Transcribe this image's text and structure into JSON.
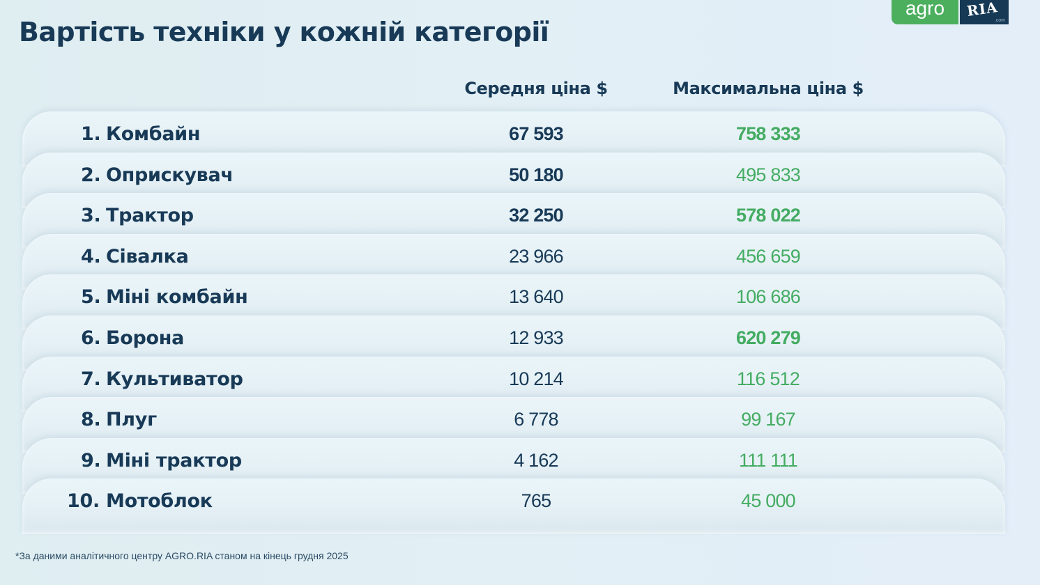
{
  "header": {
    "title": "Вартість техніки у кожній категорії",
    "logo": {
      "left": "agro",
      "right": "RIA",
      "suffix": ".com"
    }
  },
  "columns": {
    "avg_price": "Середня ціна $",
    "max_price": "Максимальна ціна $"
  },
  "colors": {
    "title": "#183a57",
    "green": "#44ac62",
    "logo_green": "#4caf5e",
    "logo_navy": "#163a55"
  },
  "rows": [
    {
      "rank": "1.",
      "name": "Комбайн",
      "avg": "67 593",
      "max": "758 333",
      "avg_bold": true,
      "max_bold": true
    },
    {
      "rank": "2.",
      "name": "Оприскувач",
      "avg": "50 180",
      "max": "495 833",
      "avg_bold": true,
      "max_bold": false
    },
    {
      "rank": "3.",
      "name": "Трактор",
      "avg": "32 250",
      "max": "578 022",
      "avg_bold": true,
      "max_bold": true
    },
    {
      "rank": "4.",
      "name": "Сівалка",
      "avg": "23 966",
      "max": "456 659",
      "avg_bold": false,
      "max_bold": false
    },
    {
      "rank": "5.",
      "name": "Міні комбайн",
      "avg": "13 640",
      "max": "106 686",
      "avg_bold": false,
      "max_bold": false
    },
    {
      "rank": "6.",
      "name": "Борона",
      "avg": "12 933",
      "max": "620 279",
      "avg_bold": false,
      "max_bold": true
    },
    {
      "rank": "7.",
      "name": "Культиватор",
      "avg": "10 214",
      "max": "116 512",
      "avg_bold": false,
      "max_bold": false
    },
    {
      "rank": "8.",
      "name": "Плуг",
      "avg": "6 778",
      "max": "99 167",
      "avg_bold": false,
      "max_bold": false
    },
    {
      "rank": "9.",
      "name": "Міні трактор",
      "avg": "4 162",
      "max": "111 111",
      "avg_bold": false,
      "max_bold": false
    },
    {
      "rank": "10.",
      "name": "Мотоблок",
      "avg": "765",
      "max": "45 000",
      "avg_bold": false,
      "max_bold": false
    }
  ],
  "footnote": "*За даними аналітичного центру AGRO.RIA станом на кінець грудня 2025"
}
